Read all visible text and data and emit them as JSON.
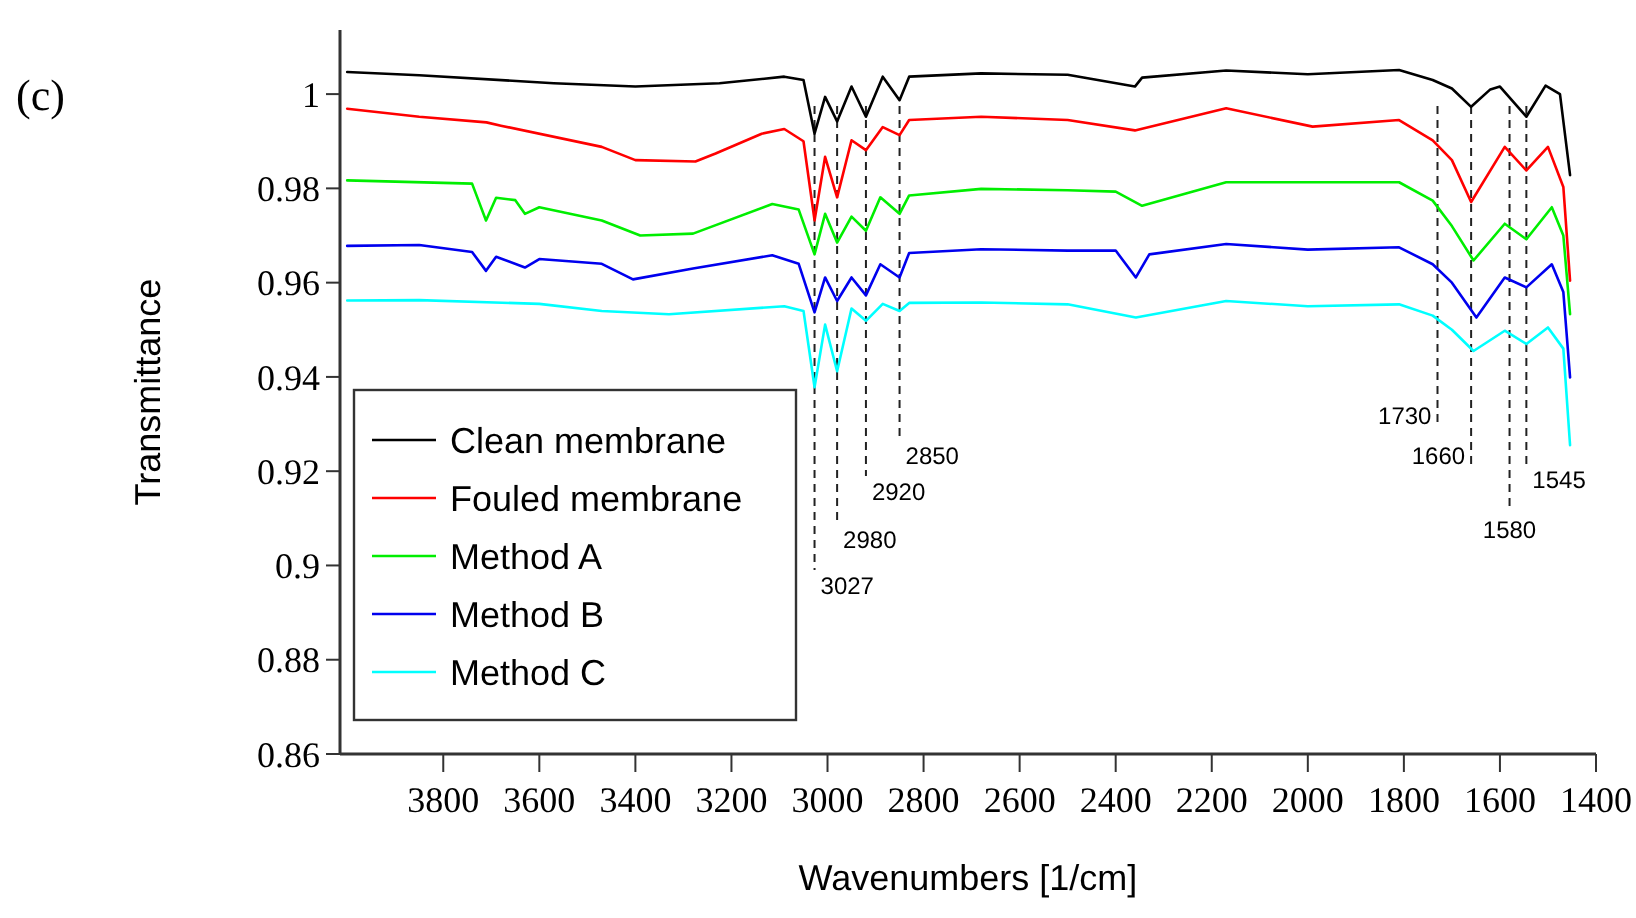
{
  "chart_data": {
    "type": "line",
    "xlabel": "Wavenumbers [1/cm]",
    "ylabel": "Transmittance",
    "annotations": [
      "(c)"
    ],
    "xlim": [
      4015,
      1400
    ],
    "xticks": [
      3800,
      3600,
      3400,
      3200,
      3000,
      2800,
      2600,
      2400,
      2200,
      2000,
      1800,
      1600,
      1400
    ],
    "ylim": [
      0.86,
      1.0136
    ],
    "yticks": [
      0.86,
      0.88,
      0.9,
      0.92,
      0.94,
      0.96,
      0.98,
      1
    ],
    "grid": false,
    "legend": "bottom left",
    "marker": "none",
    "line_style": "solid",
    "series": [
      {
        "name": "Clean membrane",
        "color": "#000000",
        "x": [
          4000,
          3850,
          3570,
          3400,
          3225,
          3090,
          3050,
          3027,
          3005,
          2980,
          2950,
          2920,
          2885,
          2850,
          2830,
          2680,
          2500,
          2360,
          2345,
          2170,
          2000,
          1810,
          1740,
          1700,
          1660,
          1620,
          1600,
          1545,
          1505,
          1475,
          1454
        ],
        "values": [
          1.0047,
          1.004,
          1.0023,
          1.0016,
          1.0023,
          1.0037,
          1.003,
          0.9916,
          0.9994,
          0.9942,
          1.0016,
          0.9952,
          1.0037,
          0.9987,
          1.0037,
          1.0044,
          1.0041,
          1.0016,
          1.0035,
          1.005,
          1.0042,
          1.0051,
          1.003,
          1.0012,
          0.9973,
          1.001,
          1.0016,
          0.9952,
          1.0018,
          1.0,
          0.9828
        ]
      },
      {
        "name": "Fouled membrane",
        "color": "#ff0000",
        "x": [
          4000,
          3850,
          3710,
          3680,
          3470,
          3400,
          3275,
          3233,
          3137,
          3090,
          3050,
          3027,
          3005,
          2980,
          2950,
          2920,
          2885,
          2850,
          2830,
          2680,
          2500,
          2360,
          2170,
          1990,
          1810,
          1740,
          1700,
          1660,
          1590,
          1545,
          1500,
          1468,
          1454
        ],
        "values": [
          0.9969,
          0.9952,
          0.994,
          0.9933,
          0.9888,
          0.986,
          0.9857,
          0.9874,
          0.9916,
          0.9926,
          0.99,
          0.9732,
          0.9867,
          0.9781,
          0.9902,
          0.9881,
          0.993,
          0.9913,
          0.9945,
          0.9952,
          0.9945,
          0.9923,
          0.997,
          0.9931,
          0.9945,
          0.9902,
          0.986,
          0.9771,
          0.9888,
          0.9838,
          0.9888,
          0.9803,
          0.9604
        ]
      },
      {
        "name": "Method A",
        "color": "#00ee00",
        "x": [
          4000,
          3740,
          3711,
          3690,
          3650,
          3630,
          3600,
          3470,
          3390,
          3280,
          3115,
          3060,
          3027,
          3005,
          2980,
          2950,
          2920,
          2890,
          2850,
          2830,
          2680,
          2500,
          2400,
          2345,
          2170,
          1810,
          1740,
          1700,
          1655,
          1590,
          1545,
          1492,
          1468,
          1454
        ],
        "values": [
          0.9817,
          0.981,
          0.9732,
          0.978,
          0.9775,
          0.9746,
          0.976,
          0.9732,
          0.97,
          0.9704,
          0.9767,
          0.9755,
          0.966,
          0.9746,
          0.9685,
          0.974,
          0.971,
          0.9781,
          0.9746,
          0.9785,
          0.9799,
          0.9796,
          0.9793,
          0.9763,
          0.9813,
          0.9813,
          0.9774,
          0.972,
          0.9647,
          0.9725,
          0.9692,
          0.976,
          0.97,
          0.9533
        ]
      },
      {
        "name": "Method B",
        "color": "#0000ee",
        "x": [
          4000,
          3850,
          3740,
          3711,
          3690,
          3630,
          3600,
          3470,
          3405,
          3280,
          3115,
          3060,
          3027,
          3005,
          2980,
          2950,
          2920,
          2890,
          2850,
          2830,
          2680,
          2500,
          2400,
          2358,
          2330,
          2170,
          2000,
          1810,
          1740,
          1700,
          1649,
          1590,
          1545,
          1492,
          1468,
          1454
        ],
        "values": [
          0.9678,
          0.968,
          0.9665,
          0.9625,
          0.9655,
          0.9632,
          0.965,
          0.964,
          0.9607,
          0.963,
          0.9658,
          0.964,
          0.9537,
          0.9611,
          0.9561,
          0.9611,
          0.9573,
          0.9639,
          0.9611,
          0.9663,
          0.9671,
          0.9668,
          0.9668,
          0.9611,
          0.966,
          0.9682,
          0.967,
          0.9675,
          0.9639,
          0.96,
          0.9526,
          0.9611,
          0.959,
          0.9639,
          0.958,
          0.9399
        ]
      },
      {
        "name": "Method C",
        "color": "#00ffff",
        "x": [
          4000,
          3850,
          3600,
          3470,
          3330,
          3090,
          3050,
          3027,
          3005,
          2980,
          2950,
          2920,
          2885,
          2850,
          2830,
          2680,
          2500,
          2358,
          2170,
          2000,
          1810,
          1740,
          1700,
          1655,
          1590,
          1545,
          1500,
          1468,
          1454
        ],
        "values": [
          0.9562,
          0.9563,
          0.9555,
          0.954,
          0.9533,
          0.955,
          0.954,
          0.9378,
          0.9511,
          0.9412,
          0.9545,
          0.9519,
          0.9555,
          0.954,
          0.9557,
          0.9558,
          0.9554,
          0.9526,
          0.9561,
          0.955,
          0.9554,
          0.953,
          0.95,
          0.9455,
          0.9498,
          0.947,
          0.9505,
          0.946,
          0.9255
        ]
      }
    ],
    "ref_lines": [
      {
        "axis": "x",
        "value": 3027,
        "label": "3027",
        "line_style": "dashed"
      },
      {
        "axis": "x",
        "value": 2980,
        "label": "2980",
        "line_style": "dashed"
      },
      {
        "axis": "x",
        "value": 2920,
        "label": "2920",
        "line_style": "dashed"
      },
      {
        "axis": "x",
        "value": 2850,
        "label": "2850",
        "line_style": "dashed"
      },
      {
        "axis": "x",
        "value": 1730,
        "label": "1730",
        "line_style": "dashed"
      },
      {
        "axis": "x",
        "value": 1660,
        "label": "1660",
        "line_style": "dashed"
      },
      {
        "axis": "x",
        "value": 1580,
        "label": "1580",
        "line_style": "dashed"
      },
      {
        "axis": "x",
        "value": 1545,
        "label": "1545",
        "line_style": "dashed"
      }
    ]
  }
}
